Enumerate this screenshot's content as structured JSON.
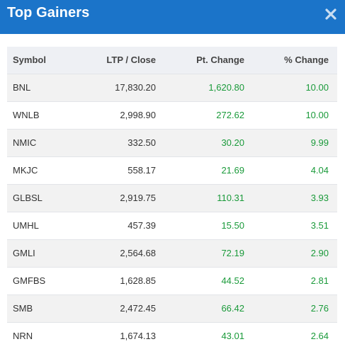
{
  "header": {
    "title": "Top Gainers",
    "close_icon": "close-icon",
    "background": "#1b74c9"
  },
  "table": {
    "columns": [
      "Symbol",
      "LTP / Close",
      "Pt. Change",
      "% Change"
    ],
    "positive_color": "#1a9a3a",
    "rows": [
      {
        "symbol": "BNL",
        "ltp": "17,830.20",
        "pt_change": "1,620.80",
        "pct_change": "10.00"
      },
      {
        "symbol": "WNLB",
        "ltp": "2,998.90",
        "pt_change": "272.62",
        "pct_change": "10.00"
      },
      {
        "symbol": "NMIC",
        "ltp": "332.50",
        "pt_change": "30.20",
        "pct_change": "9.99"
      },
      {
        "symbol": "MKJC",
        "ltp": "558.17",
        "pt_change": "21.69",
        "pct_change": "4.04"
      },
      {
        "symbol": "GLBSL",
        "ltp": "2,919.75",
        "pt_change": "110.31",
        "pct_change": "3.93"
      },
      {
        "symbol": "UMHL",
        "ltp": "457.39",
        "pt_change": "15.50",
        "pct_change": "3.51"
      },
      {
        "symbol": "GMLI",
        "ltp": "2,564.68",
        "pt_change": "72.19",
        "pct_change": "2.90"
      },
      {
        "symbol": "GMFBS",
        "ltp": "1,628.85",
        "pt_change": "44.52",
        "pct_change": "2.81"
      },
      {
        "symbol": "SMB",
        "ltp": "2,472.45",
        "pt_change": "66.42",
        "pct_change": "2.76"
      },
      {
        "symbol": "NRN",
        "ltp": "1,674.13",
        "pt_change": "43.01",
        "pct_change": "2.64"
      }
    ]
  }
}
